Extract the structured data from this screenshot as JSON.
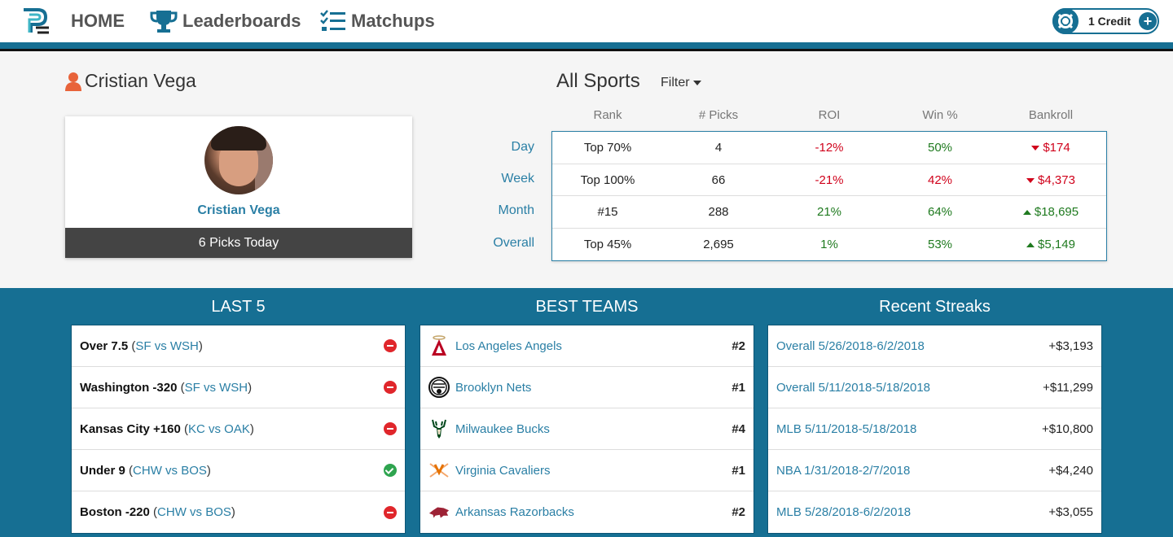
{
  "nav": {
    "home": "HOME",
    "leaderboards": "Leaderboards",
    "matchups": "Matchups",
    "credit": "1 Credit"
  },
  "profile": {
    "name": "Cristian Vega",
    "card_name": "Cristian Vega",
    "picks_today": "6 Picks Today"
  },
  "stats": {
    "title": "All Sports",
    "filter": "Filter",
    "columns": [
      "Rank",
      "# Picks",
      "ROI",
      "Win %",
      "Bankroll"
    ],
    "rows": [
      {
        "label": "Day",
        "rank": "Top 70%",
        "picks": "4",
        "roi": "-12%",
        "roi_sign": "neg",
        "win": "50%",
        "win_sign": "pos",
        "bankroll": "$174",
        "bank_dir": "down"
      },
      {
        "label": "Week",
        "rank": "Top 100%",
        "picks": "66",
        "roi": "-21%",
        "roi_sign": "neg",
        "win": "42%",
        "win_sign": "neg",
        "bankroll": "$4,373",
        "bank_dir": "down"
      },
      {
        "label": "Month",
        "rank": "#15",
        "picks": "288",
        "roi": "21%",
        "roi_sign": "pos",
        "win": "64%",
        "win_sign": "pos",
        "bankroll": "$18,695",
        "bank_dir": "up"
      },
      {
        "label": "Overall",
        "rank": "Top 45%",
        "picks": "2,695",
        "roi": "1%",
        "roi_sign": "pos",
        "win": "53%",
        "win_sign": "pos",
        "bankroll": "$5,149",
        "bank_dir": "up"
      }
    ]
  },
  "last5": {
    "title": "LAST 5",
    "items": [
      {
        "pick": "Over 7.5",
        "match": "SF vs WSH",
        "result": "loss"
      },
      {
        "pick": "Washington -320",
        "match": "SF vs WSH",
        "result": "loss"
      },
      {
        "pick": "Kansas City +160",
        "match": "KC vs OAK",
        "result": "loss"
      },
      {
        "pick": "Under 9",
        "match": "CHW vs BOS",
        "result": "win"
      },
      {
        "pick": "Boston -220",
        "match": "CHW vs BOS",
        "result": "loss"
      }
    ]
  },
  "best_teams": {
    "title": "BEST TEAMS",
    "items": [
      {
        "name": "Los Angeles Angels",
        "rank": "#2",
        "logo": "angels-logo-icon"
      },
      {
        "name": "Brooklyn Nets",
        "rank": "#1",
        "logo": "nets-logo-icon"
      },
      {
        "name": "Milwaukee Bucks",
        "rank": "#4",
        "logo": "bucks-logo-icon"
      },
      {
        "name": "Virginia Cavaliers",
        "rank": "#1",
        "logo": "cavaliers-logo-icon"
      },
      {
        "name": "Arkansas Razorbacks",
        "rank": "#2",
        "logo": "razorbacks-logo-icon"
      }
    ]
  },
  "streaks": {
    "title": "Recent Streaks",
    "items": [
      {
        "name": "Overall 5/26/2018-6/2/2018",
        "value": "+$3,193"
      },
      {
        "name": "Overall 5/11/2018-5/18/2018",
        "value": "+$11,299"
      },
      {
        "name": "MLB 5/11/2018-5/18/2018",
        "value": "+$10,800"
      },
      {
        "name": "NBA 1/31/2018-2/7/2018",
        "value": "+$4,240"
      },
      {
        "name": "MLB 5/28/2018-6/2/2018",
        "value": "+$3,055"
      }
    ]
  },
  "colors": {
    "brand": "#166f93",
    "link": "#2a7fa5",
    "negative": "#d0021b",
    "positive": "#1f7a1f"
  }
}
